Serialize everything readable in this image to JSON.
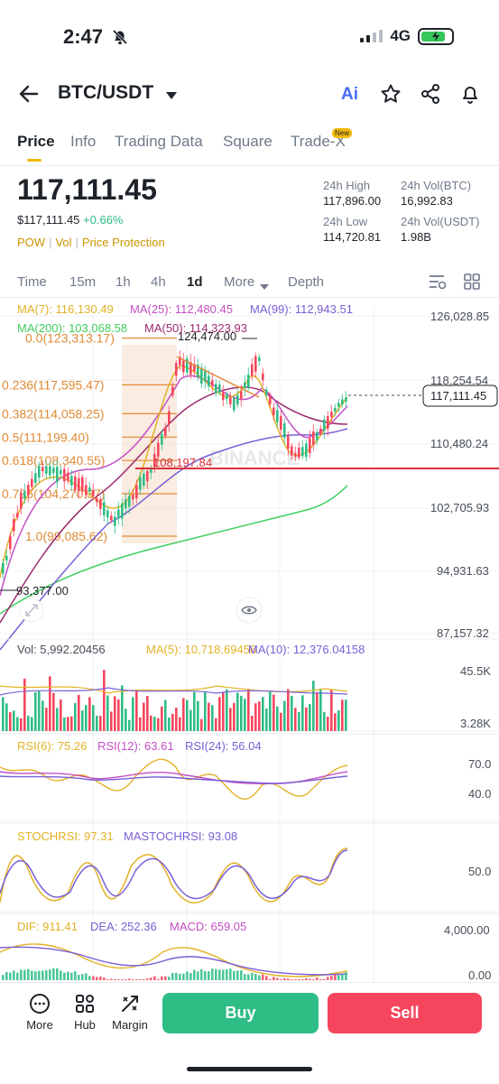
{
  "status_bar": {
    "time": "2:47",
    "network": "4G"
  },
  "header": {
    "pair": "BTC/USDT",
    "ai_label": "Ai"
  },
  "tabs": [
    {
      "label": "Price"
    },
    {
      "label": "Info"
    },
    {
      "label": "Trading Data"
    },
    {
      "label": "Square"
    },
    {
      "label": "Trade-X"
    }
  ],
  "new_badge": "New",
  "ticker": {
    "price": "117,111.45",
    "usd_price": "$117,111.45",
    "change": "+0.66%",
    "tags": [
      "POW",
      "Vol",
      "Price Protection"
    ],
    "high_label": "24h High",
    "high": "117,896.00",
    "vol_btc_label": "24h Vol(BTC)",
    "vol_btc": "16,992.83",
    "low_label": "24h Low",
    "low": "114,720.81",
    "vol_usdt_label": "24h Vol(USDT)",
    "vol_usdt": "1.98B"
  },
  "intervals": [
    {
      "label": "Time"
    },
    {
      "label": "15m"
    },
    {
      "label": "1h"
    },
    {
      "label": "4h"
    },
    {
      "label": "1d"
    },
    {
      "label": "More"
    },
    {
      "label": "Depth"
    }
  ],
  "ma": {
    "ma7": "MA(7): 116,130.49",
    "ma25": "MA(25): 112,480.45",
    "ma99": "MA(99): 112,943.51",
    "ma200": "MA(200): 103,068.58",
    "ma50": "MA(50): 114,323.93"
  },
  "price_axis": [
    "126,028.85",
    "118,254.54",
    "110,480.24",
    "102,705.93",
    "94,931.63",
    "87,157.32"
  ],
  "current_price_tag": "117,111.45",
  "fib_levels": [
    {
      "label": "0.0(123,313.17)",
      "value": 123313.17
    },
    {
      "label": "0.236(117,595.47)",
      "value": 117595.47
    },
    {
      "label": "0.382(114,058.25)",
      "value": 114058.25
    },
    {
      "label": "0.5(111,199.40)",
      "value": 111199.4
    },
    {
      "label": "0.618(108,340.55)",
      "value": 108340.55
    },
    {
      "label": "0.786(104,270.37)",
      "value": 104270.37
    },
    {
      "label": "1.0(99,085.62)",
      "value": 99085.62
    }
  ],
  "annotations": {
    "high_marker": "124,474.00",
    "low_marker": "93,377.00",
    "support_label": "108,197.84",
    "watermark": "BINANCE"
  },
  "volume": {
    "vol": "Vol: 5,992.20456",
    "ma5": "MA(5): 10,718.69456",
    "ma10": "MA(10): 12,376.04158",
    "axis_top": "45.5K",
    "axis_bottom": "3.28K"
  },
  "rsi": {
    "rsi6": "RSI(6): 75.26",
    "rsi12": "RSI(12): 63.61",
    "rsi24": "RSI(24): 56.04",
    "axis_top": "70.0",
    "axis_bottom": "40.0"
  },
  "stochrsi": {
    "stoch": "STOCHRSI: 97.31",
    "mastoch": "MASTOCHRSI: 93.08",
    "axis": "50.0"
  },
  "macd": {
    "dif": "DIF: 911.41",
    "dea": "DEA: 252.36",
    "macd": "MACD: 659.05",
    "axis_top": "4,000.00",
    "axis_bottom": "0.00"
  },
  "bottom_nav": [
    {
      "label": "More",
      "icon": "more-icon"
    },
    {
      "label": "Hub",
      "icon": "hub-icon"
    },
    {
      "label": "Margin",
      "icon": "margin-icon"
    }
  ],
  "actions": {
    "buy": "Buy",
    "sell": "Sell"
  },
  "colors": {
    "up": "#2ebd85",
    "down": "#f6465d",
    "accent": "#f0b90b",
    "ma7": "#e3b226",
    "ma25": "#c44fc4",
    "ma99": "#7a5fd6",
    "ma200": "#3fcf5f",
    "ma50": "#9c2b6e",
    "fib": "#e08a35",
    "support": "#d9303c"
  }
}
